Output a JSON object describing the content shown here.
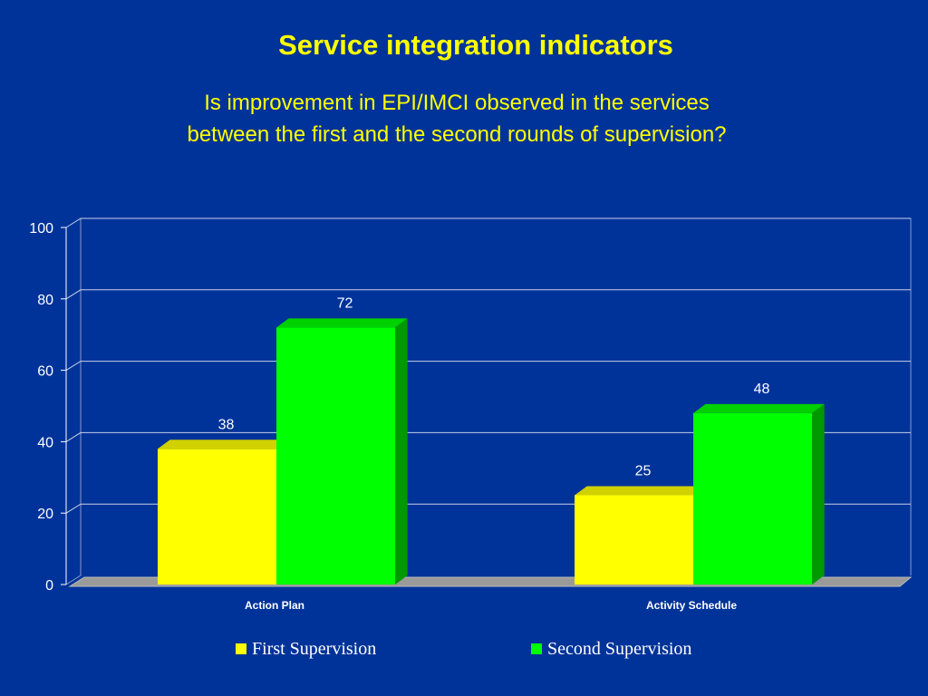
{
  "slide": {
    "title": "Service integration indicators",
    "subtitle_line1": "Is improvement in EPI/IMCI observed in the services",
    "subtitle_line2": "between the first and the second rounds of supervision?"
  },
  "colors": {
    "background": "#003399",
    "title": "#ffff00",
    "first_series": "#ffff00",
    "second_series": "#00ff00",
    "axis_text": "#ffffff"
  },
  "chart_data": {
    "type": "bar",
    "title": "",
    "categories": [
      "Action Plan",
      "Activity Schedule"
    ],
    "series": [
      {
        "name": "First Supervision",
        "values": [
          38,
          25
        ],
        "color": "#ffff00"
      },
      {
        "name": "Second Supervision",
        "values": [
          72,
          48
        ],
        "color": "#00ff00"
      }
    ],
    "ylim": [
      0,
      100
    ],
    "yticks": [
      0,
      20,
      40,
      60,
      80,
      100
    ],
    "grid": true,
    "legend_position": "bottom",
    "three_d": true
  }
}
